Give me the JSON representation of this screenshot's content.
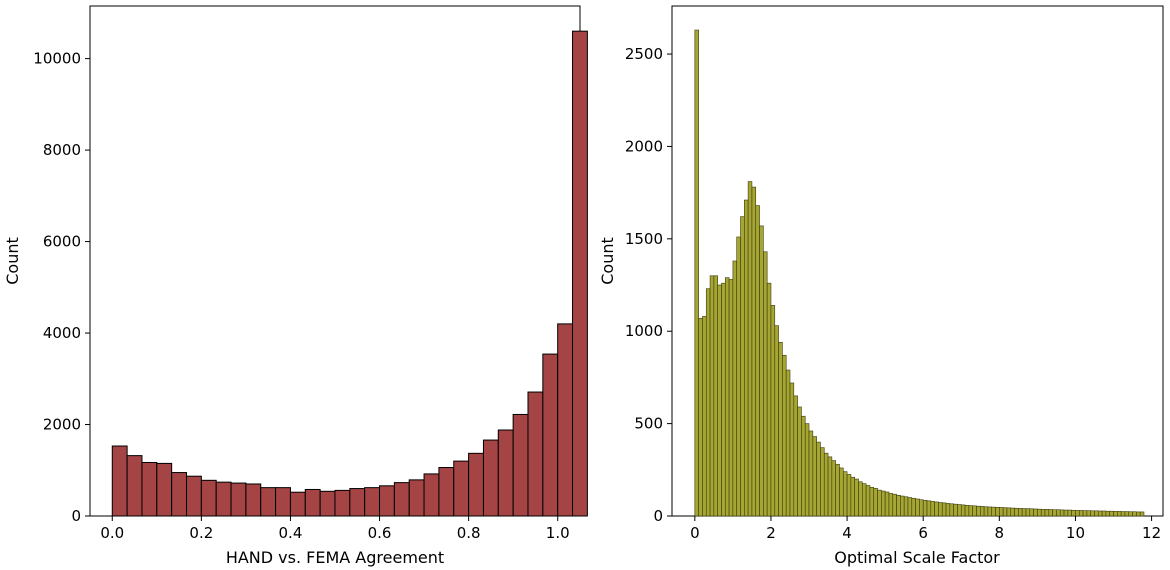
{
  "chart_data": [
    {
      "type": "bar",
      "subtype": "histogram",
      "xlabel": "HAND vs. FEMA Agreement",
      "ylabel": "Count",
      "xlim": [
        -0.05,
        1.05
      ],
      "ylim": [
        0,
        11150
      ],
      "bin_start": 0.0,
      "bin_width": 0.03333,
      "xticks": [
        0.0,
        0.2,
        0.4,
        0.6,
        0.8,
        1.0
      ],
      "xtick_labels": [
        "0.0",
        "0.2",
        "0.4",
        "0.6",
        "0.8",
        "1.0"
      ],
      "yticks": [
        0,
        2000,
        4000,
        6000,
        8000,
        10000
      ],
      "ytick_labels": [
        "0",
        "2000",
        "4000",
        "6000",
        "8000",
        "10000"
      ],
      "values": [
        1530,
        1320,
        1170,
        1150,
        950,
        870,
        780,
        740,
        720,
        700,
        620,
        620,
        520,
        580,
        540,
        560,
        600,
        620,
        660,
        730,
        790,
        920,
        1060,
        1200,
        1370,
        1660,
        1880,
        2220,
        2710,
        3540,
        4200,
        10600
      ],
      "bar_color": "#a44444",
      "edge_color": "#000000",
      "grid": false
    },
    {
      "type": "bar",
      "subtype": "histogram",
      "xlabel": "Optimal Scale Factor",
      "ylabel": "Count",
      "xlim": [
        -0.6,
        12.3
      ],
      "ylim": [
        0,
        2760
      ],
      "bin_start": 0.0,
      "bin_width": 0.1,
      "xticks": [
        0,
        2,
        4,
        6,
        8,
        10,
        12
      ],
      "xtick_labels": [
        "0",
        "2",
        "4",
        "6",
        "8",
        "10",
        "12"
      ],
      "yticks": [
        0,
        500,
        1000,
        1500,
        2000,
        2500
      ],
      "ytick_labels": [
        "0",
        "500",
        "1000",
        "1500",
        "2000",
        "2500"
      ],
      "values": [
        2630,
        1070,
        1080,
        1230,
        1300,
        1300,
        1250,
        1260,
        1290,
        1280,
        1380,
        1510,
        1620,
        1710,
        1810,
        1780,
        1680,
        1570,
        1430,
        1260,
        1140,
        1030,
        940,
        870,
        790,
        720,
        650,
        590,
        540,
        500,
        460,
        430,
        400,
        370,
        340,
        320,
        300,
        280,
        260,
        240,
        225,
        210,
        200,
        185,
        175,
        165,
        155,
        150,
        140,
        135,
        130,
        122,
        118,
        112,
        108,
        104,
        100,
        96,
        92,
        88,
        85,
        82,
        79,
        76,
        73,
        71,
        68,
        66,
        64,
        62,
        60,
        58,
        56,
        55,
        53,
        52,
        50,
        49,
        48,
        47,
        46,
        45,
        44,
        43,
        42,
        41,
        40,
        40,
        39,
        38,
        37,
        36,
        36,
        35,
        34,
        34,
        33,
        32,
        32,
        31,
        30,
        30,
        29,
        29,
        28,
        28,
        27,
        27,
        26,
        26,
        25,
        25,
        24,
        24,
        23,
        23,
        22,
        22
      ],
      "bar_color": "#a6a633",
      "edge_color": "#3a3a10",
      "grid": false
    }
  ]
}
